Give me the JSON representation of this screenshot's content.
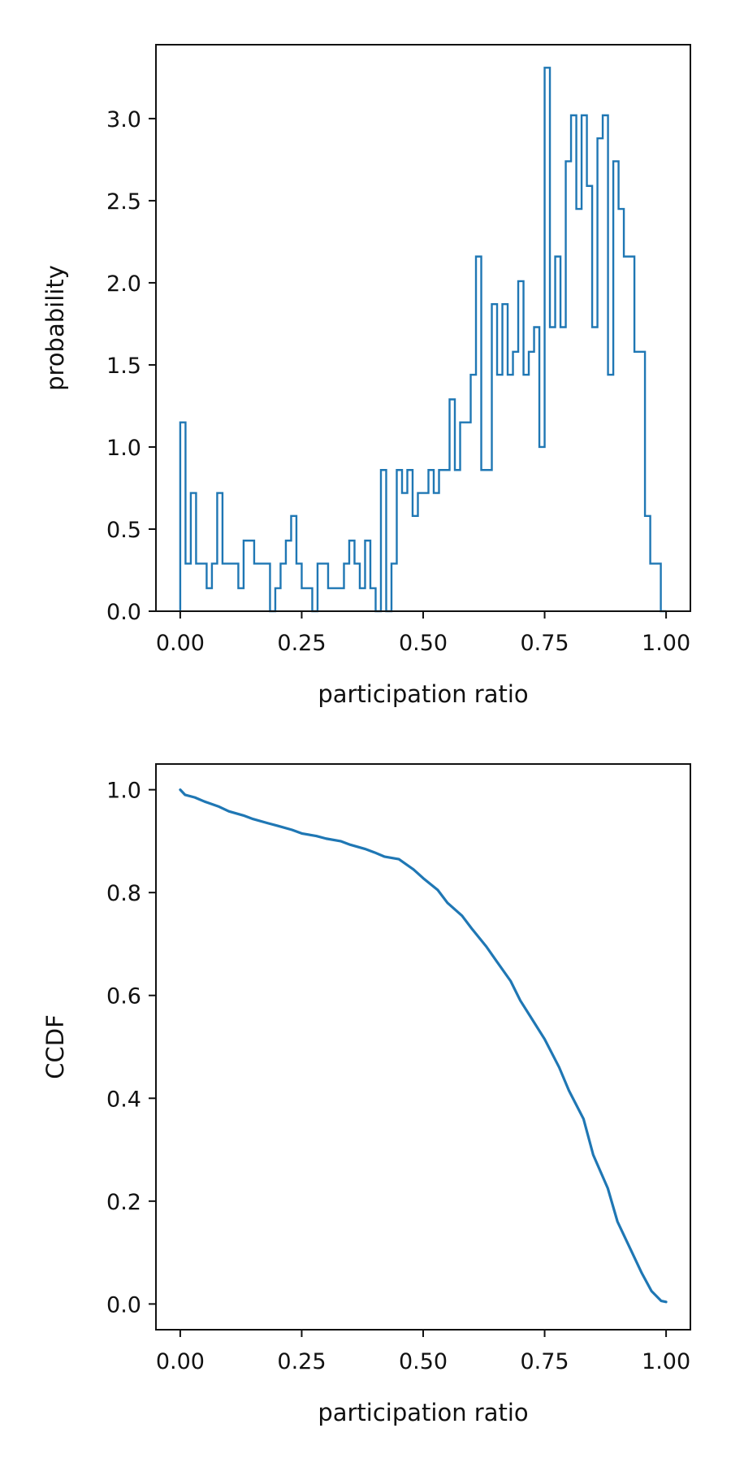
{
  "chart_data": [
    {
      "type": "step-histogram",
      "xlabel": "participation ratio",
      "ylabel": "probability",
      "xlim": [
        -0.05,
        1.05
      ],
      "ylim": [
        0,
        3.45
      ],
      "xticks": [
        0.0,
        0.25,
        0.5,
        0.75,
        1.0
      ],
      "xtick_labels": [
        "0.00",
        "0.25",
        "0.50",
        "0.75",
        "1.00"
      ],
      "yticks": [
        0.0,
        0.5,
        1.0,
        1.5,
        2.0,
        2.5,
        3.0
      ],
      "ytick_labels": [
        "0.0",
        "0.5",
        "1.0",
        "1.5",
        "2.0",
        "2.5",
        "3.0"
      ],
      "bin_width": 0.01389,
      "bin_range": [
        0.0,
        1.0
      ],
      "values": [
        1.15,
        0.29,
        0.72,
        0.29,
        0.29,
        0.14,
        0.29,
        0.72,
        0.29,
        0.29,
        0.29,
        0.14,
        0.43,
        0.43,
        0.29,
        0.29,
        0.29,
        0.0,
        0.14,
        0.29,
        0.43,
        0.58,
        0.29,
        0.14,
        0.14,
        0.0,
        0.29,
        0.29,
        0.14,
        0.14,
        0.14,
        0.29,
        0.43,
        0.29,
        0.14,
        0.43,
        0.14,
        0.0,
        0.86,
        0.0,
        0.29,
        0.86,
        0.72,
        0.86,
        0.58,
        0.72,
        0.72,
        0.86,
        0.72,
        0.86,
        0.86,
        1.29,
        0.86,
        1.15,
        1.15,
        1.44,
        2.16,
        0.86,
        0.86,
        1.87,
        1.44,
        1.87,
        1.44,
        1.58,
        2.01,
        1.44,
        1.58,
        1.73,
        1.0,
        3.31,
        1.73,
        2.16,
        1.73,
        2.74,
        3.02,
        2.45,
        3.02,
        2.59,
        1.73,
        2.88,
        3.02,
        1.44,
        2.74,
        2.45,
        2.16,
        2.16,
        1.58,
        1.58,
        0.58,
        0.29,
        0.29,
        0.0
      ],
      "color": "#1f77b4"
    },
    {
      "type": "line",
      "xlabel": "participation ratio",
      "ylabel": "CCDF",
      "xlim": [
        -0.05,
        1.05
      ],
      "ylim": [
        -0.05,
        1.05
      ],
      "xticks": [
        0.0,
        0.25,
        0.5,
        0.75,
        1.0
      ],
      "xtick_labels": [
        "0.00",
        "0.25",
        "0.50",
        "0.75",
        "1.00"
      ],
      "yticks": [
        0.0,
        0.2,
        0.4,
        0.6,
        0.8,
        1.0
      ],
      "ytick_labels": [
        "0.0",
        "0.2",
        "0.4",
        "0.6",
        "0.8",
        "1.0"
      ],
      "x": [
        0.0,
        0.01,
        0.03,
        0.05,
        0.08,
        0.1,
        0.13,
        0.15,
        0.18,
        0.2,
        0.23,
        0.25,
        0.28,
        0.3,
        0.33,
        0.35,
        0.38,
        0.4,
        0.42,
        0.45,
        0.48,
        0.5,
        0.53,
        0.55,
        0.58,
        0.6,
        0.63,
        0.65,
        0.68,
        0.7,
        0.72,
        0.75,
        0.78,
        0.8,
        0.83,
        0.85,
        0.88,
        0.9,
        0.93,
        0.95,
        0.97,
        0.99,
        1.0
      ],
      "y": [
        1.0,
        0.99,
        0.985,
        0.977,
        0.967,
        0.958,
        0.95,
        0.943,
        0.935,
        0.93,
        0.922,
        0.915,
        0.91,
        0.905,
        0.9,
        0.893,
        0.885,
        0.878,
        0.87,
        0.865,
        0.845,
        0.828,
        0.805,
        0.78,
        0.755,
        0.73,
        0.695,
        0.668,
        0.628,
        0.59,
        0.56,
        0.515,
        0.46,
        0.415,
        0.36,
        0.29,
        0.225,
        0.16,
        0.1,
        0.06,
        0.025,
        0.006,
        0.004
      ],
      "color": "#1f77b4"
    }
  ]
}
